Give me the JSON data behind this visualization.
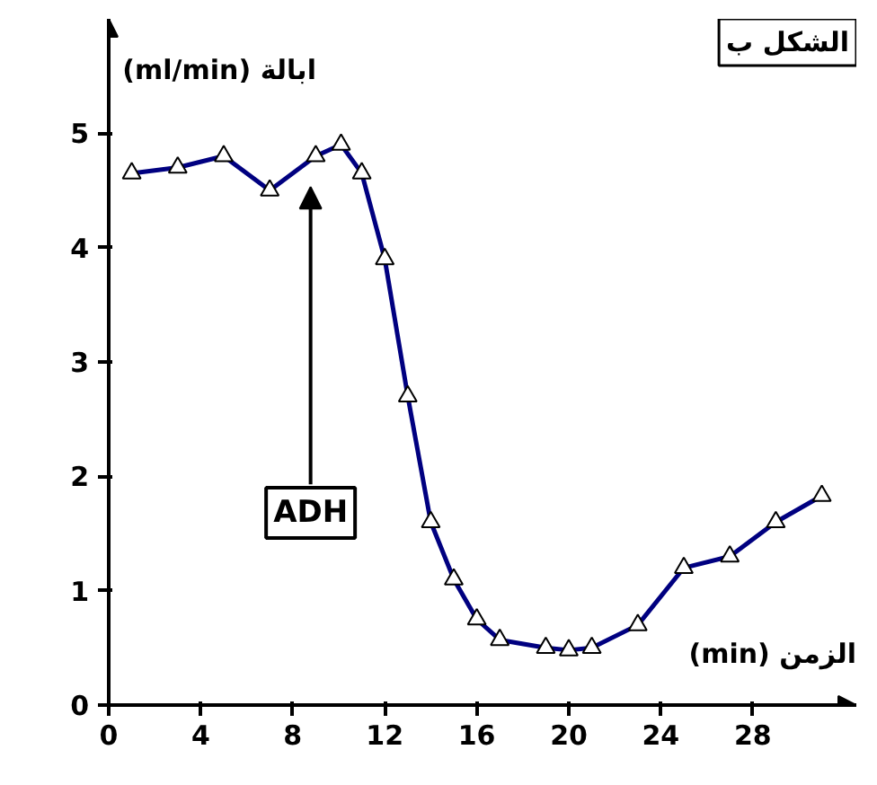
{
  "chart_data": {
    "type": "line",
    "title": "الشكل ب",
    "xlabel": "(min) الزمن",
    "ylabel": "(ml/min) ابالة",
    "x": [
      1,
      3,
      5,
      7,
      9,
      10.1,
      11,
      12,
      13,
      14,
      15,
      16,
      17,
      19,
      20,
      21,
      23,
      25,
      27,
      29,
      31
    ],
    "series": [
      {
        "color": "#000080",
        "values": [
          4.65,
          4.7,
          4.8,
          4.5,
          4.8,
          4.9,
          4.65,
          3.9,
          2.7,
          1.6,
          1.1,
          0.75,
          0.57,
          0.5,
          0.48,
          0.5,
          0.7,
          1.2,
          1.3,
          1.6,
          1.83
        ]
      }
    ],
    "xlim": [
      0,
      32.5
    ],
    "ylim": [
      0,
      6
    ],
    "xticks": [
      0,
      4,
      8,
      12,
      16,
      20,
      24,
      28
    ],
    "yticks": [
      0,
      1,
      2,
      3,
      4,
      5
    ],
    "annotations": [
      "ADH"
    ],
    "marker": "triangle",
    "line_style": "solid",
    "grid": false
  }
}
